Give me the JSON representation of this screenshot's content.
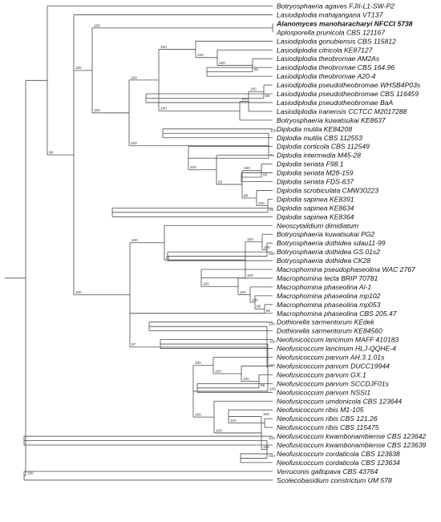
{
  "colors": {
    "branch": "#4a4a4a",
    "text": "#111111",
    "highlight": "#1a1acc"
  },
  "taxa": [
    "Botryosphaeria agaves FJII-L1-SW-P2",
    "Lasiodiplodia mahajangana VT137",
    "Alanomyces manoharacharyi NFCCI 5738",
    "Aplosporella prunicola CBS 121167",
    "Lasiodiplodia gonubiensis CBS 115812",
    "Lasiodiplodia citricola KE87127",
    "Lasiodiplodia theobromae AM2As",
    "Lasiodiplodia theobromae CBS 164.96",
    "Lasiodiplodia theobromae A20-4",
    "Lasiodiplodia pseudotheobromae WHSB4P03s",
    "Lasiodiplodia pseudotheobromae CBS 116459",
    "Lasiodiplodia pseudotheobromae BaA",
    "Lasiodiplodia iranensis CCTCC M2017288",
    "Botryosphaeria kuwatsukai KE8637",
    "Diplodia mutila KE84208",
    "Diplodia mutila CBS 112553",
    "Diplodia corticola CBS 112549",
    "Diplodia intermedia M45-28",
    "Diplodia seriata F98.1",
    "Diplodia seriata M28-159",
    "Diplodia seriata FDS-637",
    "Diplodia scrobiculata CMW30223",
    "Diplodia sapinea KE8391",
    "Diplodia sapinea KE8634",
    "Diplodia sapinea KE8364",
    "Neoscytalidium dimidiatum",
    "Botryosphaeria kuwatsukai PG2",
    "Botryosphaeria dothidea sdau11-99",
    "Botryosphaeria dothidea GS.01s2",
    "Botryosphaeria dothidea CK28",
    "Macrophomina pseudophaseolina WAC 2767",
    "Macrophomina tecta BRIP 70781",
    "Macrophomina phaseolina Al-1",
    "Macrophomina phaseolina mp102",
    "Macrophomina phaseolina mp053",
    "Macrophomina phaseolina CBS 205.47",
    "Dothiorella sarmentorum KEdek",
    "Dothiorella sarmentorum KE84560",
    "Neofusicoccum laricinum MAFF 410183",
    "Neofusicoccum laricinum HLJ-QQHE-4",
    "Neofusicoccum parvum AH.3.1.01s",
    "Neofusicoccum parvum DUCC19944",
    "Neofusicoccum parvum GX.1",
    "Neofusicoccum parvum SCCDJF01s",
    "Neofusicoccum parvum NSSI1",
    "Neofusicoccum umdonicola CBS 123644",
    "Neofusicoccum ribis M1-105",
    "Neofusicoccum ribis CBS 121.26",
    "Neofusicoccum ribis CBS 115475",
    "Neofusicoccum kwambonambiense CBS 123642",
    "Neofusicoccum kwambonambiense CBS 123639",
    "Neofusicoccum cordaticola CBS 123638",
    "Neofusicoccum cordaticola CBS 123634",
    "Verruconis gallopava CBS 43764",
    "Scolecobasidium constrictum UM 578"
  ],
  "highlighted_taxon": 2,
  "tree": {
    "support": "",
    "children": [
      {
        "support": "",
        "children": [
          {
            "taxon": 0
          },
          {
            "support": "98",
            "children": [
              {
                "taxon": 1
              },
              {
                "support": "100",
                "children": [
                  {
                    "support": "100",
                    "children": [
                      {
                        "taxon": 2
                      },
                      {
                        "taxon": 3
                      }
                    ]
                  },
                  {
                    "support": "100",
                    "children": [
                      {
                        "support": "100",
                        "children": [
                          {
                            "support": "100",
                            "children": [
                              {
                                "taxon": 4
                              },
                              {
                                "support": "100",
                                "children": [
                                  {
                                    "taxon": 5
                                  },
                                  {
                                    "support": "100",
                                    "children": [
                                      {
                                        "taxon": 6
                                      },
                                      {
                                        "support": "60",
                                        "children": [
                                          {
                                            "taxon": 7
                                          },
                                          {
                                            "taxon": 8
                                          }
                                        ]
                                      }
                                    ]
                                  }
                                ]
                              }
                            ]
                          },
                          {
                            "support": "100",
                            "children": [
                              {
                                "support": "100",
                                "children": [
                                  {
                                    "support": "100",
                                    "children": [
                                      {
                                        "taxon": 9
                                      },
                                      {
                                        "support": "98",
                                        "children": [
                                          {
                                            "taxon": 10
                                          },
                                          {
                                            "taxon": 11
                                          }
                                        ]
                                      }
                                    ]
                                  },
                                  {
                                    "taxon": 12
                                  }
                                ]
                              },
                              {
                                "taxon": 13
                              }
                            ]
                          }
                        ]
                      },
                      {
                        "support": "100",
                        "children": [
                          {
                            "support": "100",
                            "children": [
                              {
                                "taxon": 14
                              },
                              {
                                "taxon": 15
                              }
                            ]
                          },
                          {
                            "support": "70",
                            "children": [
                              {
                                "taxon": 16
                              },
                              {
                                "support": "100",
                                "children": [
                                  {
                                    "taxon": 17
                                  },
                                  {
                                    "support": "83",
                                    "children": [
                                      {
                                        "support": "100",
                                        "children": [
                                          {
                                            "taxon": 18
                                          },
                                          {
                                            "support": "93",
                                            "children": [
                                              {
                                                "taxon": 19
                                              },
                                              {
                                                "taxon": 20
                                              }
                                            ]
                                          }
                                        ]
                                      },
                                      {
                                        "support": "98",
                                        "children": [
                                          {
                                            "taxon": 21
                                          },
                                          {
                                            "support": "100",
                                            "children": [
                                              {
                                                "taxon": 22
                                              },
                                              {
                                                "support": "69",
                                                "children": [
                                                  {
                                                    "taxon": 23
                                                  },
                                                  {
                                                    "taxon": 24
                                                  }
                                                ]
                                              }
                                            ]
                                          }
                                        ]
                                      }
                                    ]
                                  }
                                ]
                              }
                            ]
                          }
                        ]
                      }
                    ]
                  }
                ]
              },
              {
                "support": "100",
                "children": [
                  {
                    "support": "100",
                    "children": [
                      {
                        "taxon": 25
                      },
                      {
                        "support": "81",
                        "children": [
                          {
                            "support": "100",
                            "children": [
                              {
                                "taxon": 26
                              },
                              {
                                "support": "100",
                                "children": [
                                  {
                                    "taxon": 27
                                  },
                                  {
                                    "support": "100",
                                    "children": [
                                      {
                                        "taxon": 28
                                      },
                                      {
                                        "taxon": 29
                                      }
                                    ]
                                  }
                                ]
                              }
                            ]
                          },
                          {
                            "support": "100",
                            "children": [
                              {
                                "taxon": 30
                              },
                              {
                                "support": "100",
                                "children": [
                                  {
                                    "taxon": 31
                                  },
                                  {
                                    "support": "100",
                                    "children": [
                                      {
                                        "taxon": 32
                                      },
                                      {
                                        "support": "100",
                                        "children": [
                                          {
                                            "taxon": 33
                                          },
                                          {
                                            "support": "98",
                                            "children": [
                                              {
                                                "taxon": 34
                                              },
                                              {
                                                "support": "60",
                                                "children": [
                                                  {
                                                    "taxon": 35
                                                  }
                                                ]
                                              }
                                            ]
                                          }
                                        ]
                                      }
                                    ]
                                  }
                                ]
                              }
                            ]
                          }
                        ]
                      }
                    ]
                  },
                  {
                    "support": "97",
                    "children": [
                      {
                        "support": "100",
                        "children": [
                          {
                            "taxon": 36
                          },
                          {
                            "taxon": 37
                          }
                        ]
                      },
                      {
                        "support": "100",
                        "children": [
                          {
                            "support": "100",
                            "children": [
                              {
                                "taxon": 38
                              },
                              {
                                "taxon": 39
                              }
                            ]
                          },
                          {
                            "support": "100",
                            "children": [
                              {
                                "support": "100",
                                "children": [
                                  {
                                    "taxon": 40
                                  },
                                  {
                                    "support": "100",
                                    "children": [
                                      {
                                        "taxon": 41
                                      },
                                      {
                                        "support": "100",
                                        "children": [
                                          {
                                            "taxon": 42
                                          },
                                          {
                                            "support": "89",
                                            "children": [
                                              {
                                                "taxon": 43
                                              },
                                              {
                                                "taxon": 44
                                              }
                                            ]
                                          }
                                        ]
                                      }
                                    ]
                                  }
                                ]
                              },
                              {
                                "support": "100",
                                "children": [
                                  {
                                    "taxon": 45
                                  },
                                  {
                                    "support": "100",
                                    "children": [
                                      {
                                        "support": "100",
                                        "children": [
                                          {
                                            "taxon": 46
                                          },
                                          {
                                            "support": "100",
                                            "children": [
                                              {
                                                "taxon": 47
                                              },
                                              {
                                                "taxon": 48
                                              }
                                            ]
                                          }
                                        ]
                                      },
                                      {
                                        "support": "100",
                                        "children": [
                                          {
                                            "support": "100",
                                            "children": [
                                              {
                                                "taxon": 49
                                              },
                                              {
                                                "taxon": 50
                                              }
                                            ]
                                          },
                                          {
                                            "support": "100",
                                            "children": [
                                              {
                                                "taxon": 51
                                              },
                                              {
                                                "taxon": 52
                                              }
                                            ]
                                          }
                                        ]
                                      }
                                    ]
                                  }
                                ]
                              }
                            ]
                          }
                        ]
                      }
                    ]
                  }
                ]
              }
            ]
          }
        ]
      },
      {
        "support": "100",
        "children": [
          {
            "taxon": 53
          },
          {
            "taxon": 54
          }
        ]
      }
    ]
  }
}
